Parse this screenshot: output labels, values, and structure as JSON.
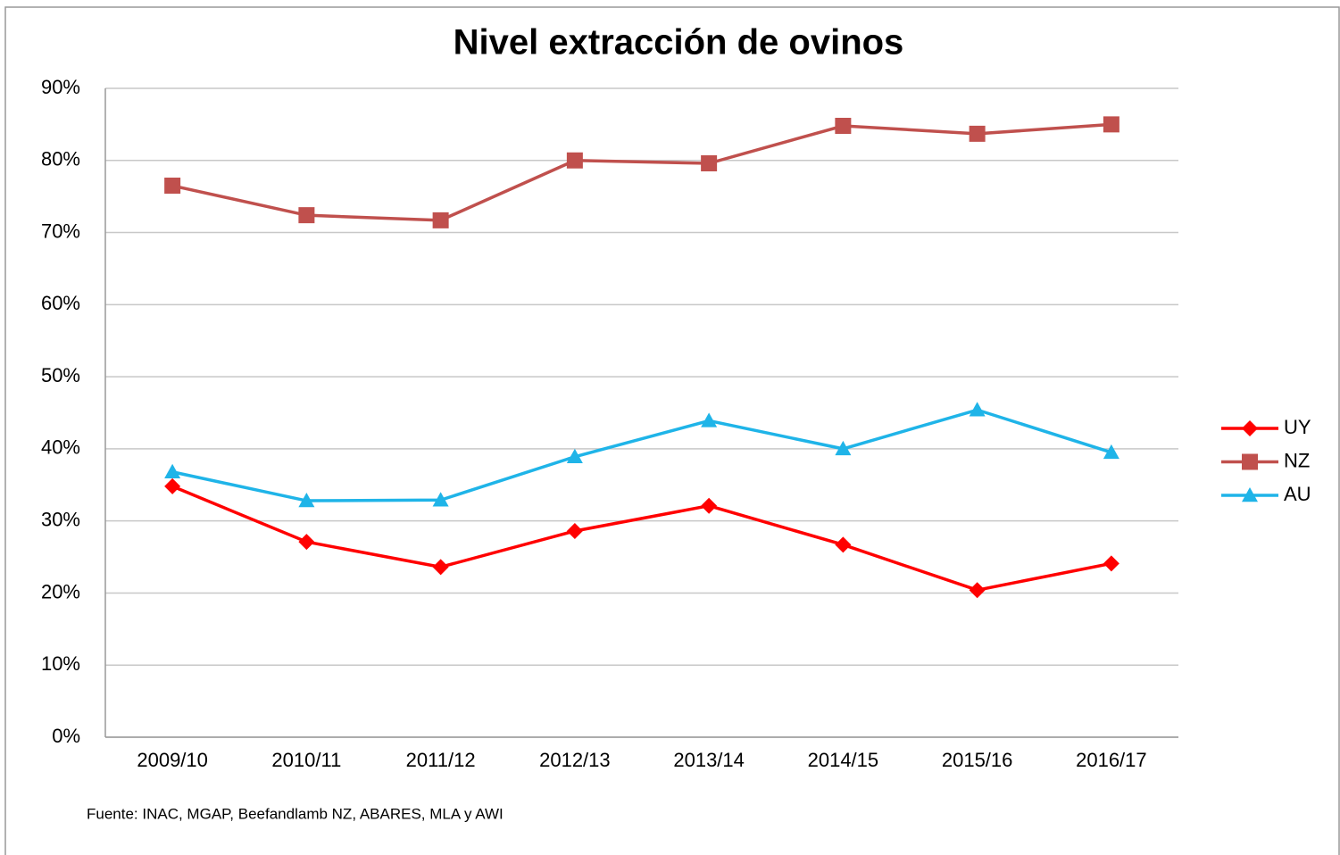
{
  "chart_data": {
    "type": "line",
    "title": "Nivel extracción de ovinos",
    "source": "Fuente: INAC, MGAP, Beefandlamb NZ, ABARES, MLA y AWI",
    "categories": [
      "2009/10",
      "2010/11",
      "2011/12",
      "2012/13",
      "2013/14",
      "2014/15",
      "2015/16",
      "2016/17"
    ],
    "series": [
      {
        "name": "UY",
        "color": "#ff0000",
        "marker": "diamond",
        "values": [
          34.8,
          27.1,
          23.6,
          28.6,
          32.1,
          26.7,
          20.4,
          24.1
        ]
      },
      {
        "name": "NZ",
        "color": "#c0504d",
        "marker": "square",
        "values": [
          76.5,
          72.4,
          71.7,
          80.0,
          79.6,
          84.8,
          83.7,
          85.0
        ]
      },
      {
        "name": "AU",
        "color": "#1fb4e8",
        "marker": "triangle",
        "values": [
          36.8,
          32.8,
          32.9,
          38.9,
          43.9,
          40.0,
          45.4,
          39.5
        ]
      }
    ],
    "ylim": [
      0,
      90
    ],
    "yticks": [
      {
        "value": 0,
        "label": "0%"
      },
      {
        "value": 10,
        "label": "10%"
      },
      {
        "value": 20,
        "label": "20%"
      },
      {
        "value": 30,
        "label": "30%"
      },
      {
        "value": 40,
        "label": "40%"
      },
      {
        "value": 50,
        "label": "50%"
      },
      {
        "value": 60,
        "label": "60%"
      },
      {
        "value": 70,
        "label": "70%"
      },
      {
        "value": 80,
        "label": "80%"
      },
      {
        "value": 90,
        "label": "90%"
      }
    ],
    "grid": true,
    "legend": "right"
  }
}
